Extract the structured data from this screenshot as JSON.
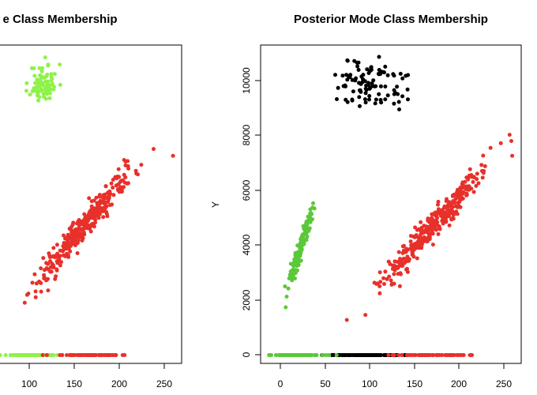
{
  "colors": {
    "green": "#8ff24a",
    "green_dark": "#5bc83a",
    "red": "#e8302a",
    "black": "#000000"
  },
  "chart_data": [
    {
      "type": "scatter",
      "title": "e Class Membership",
      "xlabel": "",
      "ylabel": "",
      "xlim": [
        50,
        270
      ],
      "ylim": [
        -300,
        11200
      ],
      "xticks": [
        "100",
        "150",
        "200",
        "250"
      ],
      "yticks": [],
      "grid": false,
      "series": [
        {
          "color": "green",
          "clusters": [
            {
              "center": [
                110,
                9800
              ],
              "spread": [
                8,
                350
              ],
              "count": 80,
              "seed": 11
            },
            {
              "center": [
                95,
                0
              ],
              "spread": [
                14,
                0
              ],
              "count": 120,
              "seed": 21
            }
          ]
        },
        {
          "color": "red",
          "clusters": [
            {
              "center": [
                155,
                4600
              ],
              "spread": [
                30,
                600
              ],
              "count": 330,
              "seed": 31,
              "slope": 37
            },
            {
              "center": [
                165,
                0
              ],
              "spread": [
                22,
                0
              ],
              "count": 70,
              "seed": 41
            }
          ],
          "points": [
            [
              260,
              7200
            ]
          ]
        }
      ]
    },
    {
      "type": "scatter",
      "title": "Posterior Mode Class Membership",
      "xlabel": "",
      "ylabel": "Y",
      "xlim": [
        -20,
        270
      ],
      "ylim": [
        -300,
        11200
      ],
      "xticks": [
        "0",
        "50",
        "100",
        "150",
        "200",
        "250"
      ],
      "yticks": [
        "0",
        "2000",
        "4000",
        "6000",
        "8000",
        "10000"
      ],
      "grid": false,
      "series": [
        {
          "color": "black",
          "clusters": [
            {
              "center": [
                100,
                9800
              ],
              "spread": [
                22,
                450
              ],
              "count": 100,
              "seed": 51
            },
            {
              "center": [
                100,
                0
              ],
              "spread": [
                22,
                0
              ],
              "count": 150,
              "seed": 61
            }
          ]
        },
        {
          "color": "green_dark",
          "clusters": [
            {
              "center": [
                25,
                3900
              ],
              "spread": [
                8,
                500
              ],
              "count": 160,
              "seed": 71,
              "slope": 100
            },
            {
              "center": [
                20,
                0
              ],
              "spread": [
                14,
                0
              ],
              "count": 120,
              "seed": 81
            }
          ]
        },
        {
          "color": "red",
          "clusters": [
            {
              "center": [
                170,
                4600
              ],
              "spread": [
                30,
                600
              ],
              "count": 330,
              "seed": 91,
              "slope": 37
            },
            {
              "center": [
                170,
                0
              ],
              "spread": [
                22,
                0
              ],
              "count": 70,
              "seed": 101
            }
          ],
          "points": [
            [
              260,
              7200
            ]
          ]
        }
      ]
    }
  ]
}
